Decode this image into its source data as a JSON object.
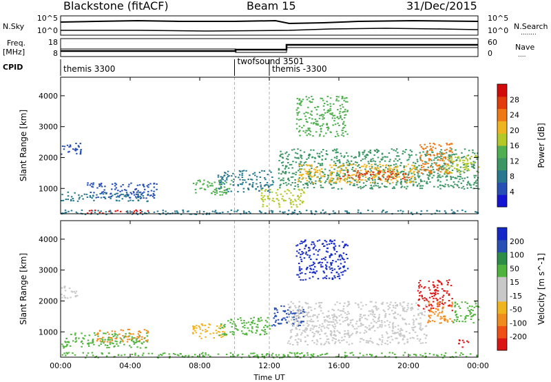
{
  "header": {
    "station": "Blackstone (fitACF)",
    "beam": "Beam 15",
    "date": "31/Dec/2015"
  },
  "panels": {
    "nsky_label": "N.Sky",
    "nsearch_label": "N.Search",
    "nsearch_dots": "........",
    "freq_label_1": "Freq.",
    "freq_label_2": "[MHz]",
    "nave_label": "Nave",
    "nave_dots": "....",
    "cpid_label": "CPID",
    "nsky_ticks": [
      "10^5",
      "10^0"
    ],
    "nsearch_ticks": [
      "10^5",
      "10^0"
    ],
    "freq_ticks": [
      "18",
      "8"
    ],
    "nave_ticks": [
      "60",
      "0"
    ],
    "cpid_segments": [
      {
        "label": "themis 3300",
        "start": 0.0,
        "end": 10.0
      },
      {
        "label": "twofsound 3501",
        "start": 10.0,
        "end": 12.0
      },
      {
        "label": "themis -3300",
        "start": 12.0,
        "end": 24.0
      }
    ]
  },
  "colors": {
    "power_scale": [
      "#1414d2",
      "#2850b4",
      "#287890",
      "#3c9664",
      "#50af50",
      "#b4c828",
      "#f0b41e",
      "#f07814",
      "#e13c0a",
      "#d20a0a"
    ],
    "velocity_scale": [
      "#dc1414",
      "#f05014",
      "#f08c1e",
      "#f0b41e",
      "#c8c8c8",
      "#c8c8c8",
      "#50b43c",
      "#2d8c46",
      "#2850b4",
      "#1428c8"
    ],
    "ground_scatter": "#b4b4b4"
  },
  "chart_data": [
    {
      "type": "heatmap",
      "title": "",
      "xlabel": "Time UT",
      "ylabel": "Slant Range [km]",
      "colorbar_label": "Power [dB]",
      "colorbar_ticks": [
        "4",
        "8",
        "12",
        "16",
        "20",
        "24",
        "28"
      ],
      "xlim": [
        0,
        24
      ],
      "ylim": [
        180,
        4600
      ],
      "y_ticks": [
        "1000",
        "2000",
        "3000",
        "4000"
      ],
      "y_tick_values": [
        1000,
        2000,
        3000,
        4000
      ],
      "regions": [
        {
          "t0": 0.0,
          "t1": 1.2,
          "r0": 2100,
          "r1": 2500,
          "level": 1
        },
        {
          "t0": 0.0,
          "t1": 5.0,
          "r0": 600,
          "r1": 900,
          "level": 2
        },
        {
          "t0": 1.5,
          "t1": 5.5,
          "r0": 700,
          "r1": 1200,
          "level": 1
        },
        {
          "t0": 1.5,
          "t1": 5.0,
          "r0": 200,
          "r1": 320,
          "level": 9
        },
        {
          "t0": 7.5,
          "t1": 9.8,
          "r0": 800,
          "r1": 1300,
          "level": 4
        },
        {
          "t0": 9.0,
          "t1": 12.2,
          "r0": 900,
          "r1": 1600,
          "level": 2
        },
        {
          "t0": 11.5,
          "t1": 14.0,
          "r0": 400,
          "r1": 1000,
          "level": 5
        },
        {
          "t0": 12.5,
          "t1": 24.0,
          "r0": 1000,
          "r1": 2300,
          "level": 3
        },
        {
          "t0": 13.5,
          "t1": 20.5,
          "r0": 1200,
          "r1": 1800,
          "level": 6
        },
        {
          "t0": 16.0,
          "t1": 20.0,
          "r0": 1300,
          "r1": 1600,
          "level": 8
        },
        {
          "t0": 13.5,
          "t1": 16.5,
          "r0": 2700,
          "r1": 4000,
          "level": 4
        },
        {
          "t0": 20.5,
          "t1": 22.5,
          "r0": 1500,
          "r1": 2500,
          "level": 7
        },
        {
          "t0": 22.0,
          "t1": 24.0,
          "r0": 1500,
          "r1": 2100,
          "level": 5
        },
        {
          "t0": 0.0,
          "t1": 24.0,
          "r0": 180,
          "r1": 320,
          "level": 2
        }
      ]
    },
    {
      "type": "heatmap",
      "title": "",
      "xlabel": "Time UT",
      "ylabel": "Slant Range [km]",
      "colorbar_label": "Velocity [m s^-1]",
      "colorbar_ticks": [
        "-200",
        "-100",
        "-50",
        "-15",
        "15",
        "50",
        "100",
        "200"
      ],
      "xlim": [
        0,
        24
      ],
      "ylim": [
        180,
        4600
      ],
      "x_ticks": [
        "00:00",
        "04:00",
        "08:00",
        "12:00",
        "16:00",
        "20:00",
        "00:00"
      ],
      "x_tick_values": [
        0,
        4,
        8,
        12,
        16,
        20,
        24
      ],
      "y_ticks": [
        "1000",
        "2000",
        "3000",
        "4000"
      ],
      "y_tick_values": [
        1000,
        2000,
        3000,
        4000
      ],
      "regions": [
        {
          "t0": 0.0,
          "t1": 1.0,
          "r0": 2100,
          "r1": 2500,
          "level": 4
        },
        {
          "t0": 0.0,
          "t1": 5.0,
          "r0": 500,
          "r1": 1000,
          "level": 6
        },
        {
          "t0": 2.0,
          "t1": 5.0,
          "r0": 700,
          "r1": 1100,
          "level": 2
        },
        {
          "t0": 0.0,
          "t1": 24.0,
          "r0": 180,
          "r1": 350,
          "level": 6
        },
        {
          "t0": 7.5,
          "t1": 9.5,
          "r0": 800,
          "r1": 1300,
          "level": 3
        },
        {
          "t0": 9.0,
          "t1": 12.0,
          "r0": 900,
          "r1": 1500,
          "level": 6
        },
        {
          "t0": 12.0,
          "t1": 14.0,
          "r0": 1200,
          "r1": 1900,
          "level": 8
        },
        {
          "t0": 13.5,
          "t1": 16.5,
          "r0": 2700,
          "r1": 4000,
          "level": 9
        },
        {
          "t0": 13.0,
          "t1": 21.0,
          "r0": 600,
          "r1": 2000,
          "level": 4
        },
        {
          "t0": 20.5,
          "t1": 22.5,
          "r0": 1700,
          "r1": 2700,
          "level": 0
        },
        {
          "t0": 21.0,
          "t1": 22.5,
          "r0": 1300,
          "r1": 2000,
          "level": 2
        },
        {
          "t0": 22.5,
          "t1": 24.0,
          "r0": 1300,
          "r1": 2000,
          "level": 6
        },
        {
          "t0": 22.8,
          "t1": 23.4,
          "r0": 500,
          "r1": 800,
          "level": 0
        }
      ]
    }
  ]
}
